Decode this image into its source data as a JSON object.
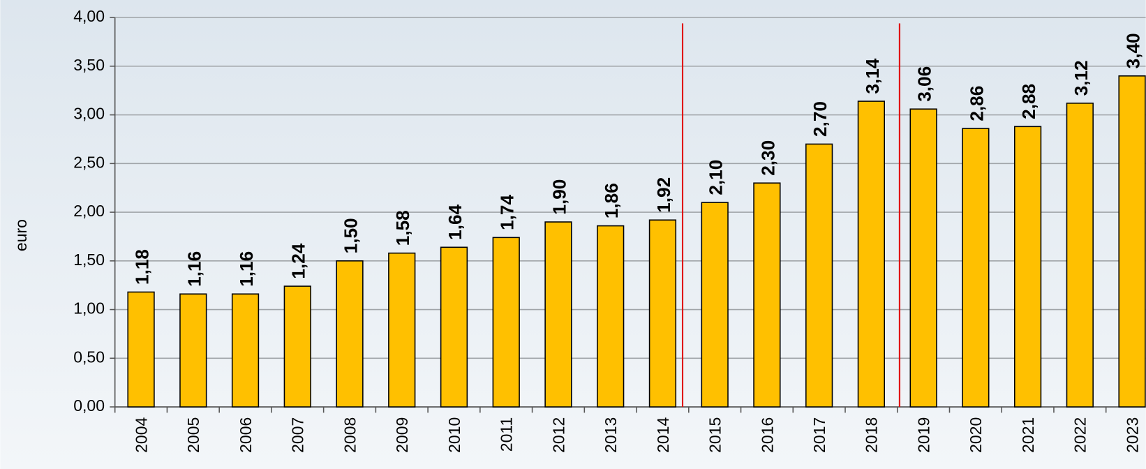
{
  "chart_data": {
    "type": "bar",
    "y_label": "euro",
    "categories": [
      "2004",
      "2005",
      "2006",
      "2007",
      "2008",
      "2009",
      "2010",
      "2011",
      "2012",
      "2013",
      "2014",
      "2015",
      "2016",
      "2017",
      "2018",
      "2019",
      "2020",
      "2021",
      "2022",
      "2023"
    ],
    "values": [
      1.18,
      1.16,
      1.16,
      1.24,
      1.5,
      1.58,
      1.64,
      1.74,
      1.9,
      1.86,
      1.92,
      2.1,
      2.3,
      2.7,
      3.14,
      3.06,
      2.86,
      2.88,
      3.12,
      3.4
    ],
    "value_labels": [
      "1,18",
      "1,16",
      "1,16",
      "1,24",
      "1,50",
      "1,58",
      "1,64",
      "1,74",
      "1,90",
      "1,86",
      "1,92",
      "2,10",
      "2,30",
      "2,70",
      "3,14",
      "3,06",
      "2,86",
      "2,88",
      "3,12",
      "3,40"
    ],
    "color": "#ffc000",
    "ylim": [
      0,
      4
    ],
    "yticks": [
      {
        "value": 0,
        "label": "0,00"
      },
      {
        "value": 0.5,
        "label": "0,50"
      },
      {
        "value": 1,
        "label": "1,00"
      },
      {
        "value": 1.5,
        "label": "1,50"
      },
      {
        "value": 2,
        "label": "2,00"
      },
      {
        "value": 2.5,
        "label": "2,50"
      },
      {
        "value": 3,
        "label": "3,00"
      },
      {
        "value": 3.5,
        "label": "3,50"
      },
      {
        "value": 4,
        "label": "4,00"
      }
    ],
    "grid": true
  }
}
